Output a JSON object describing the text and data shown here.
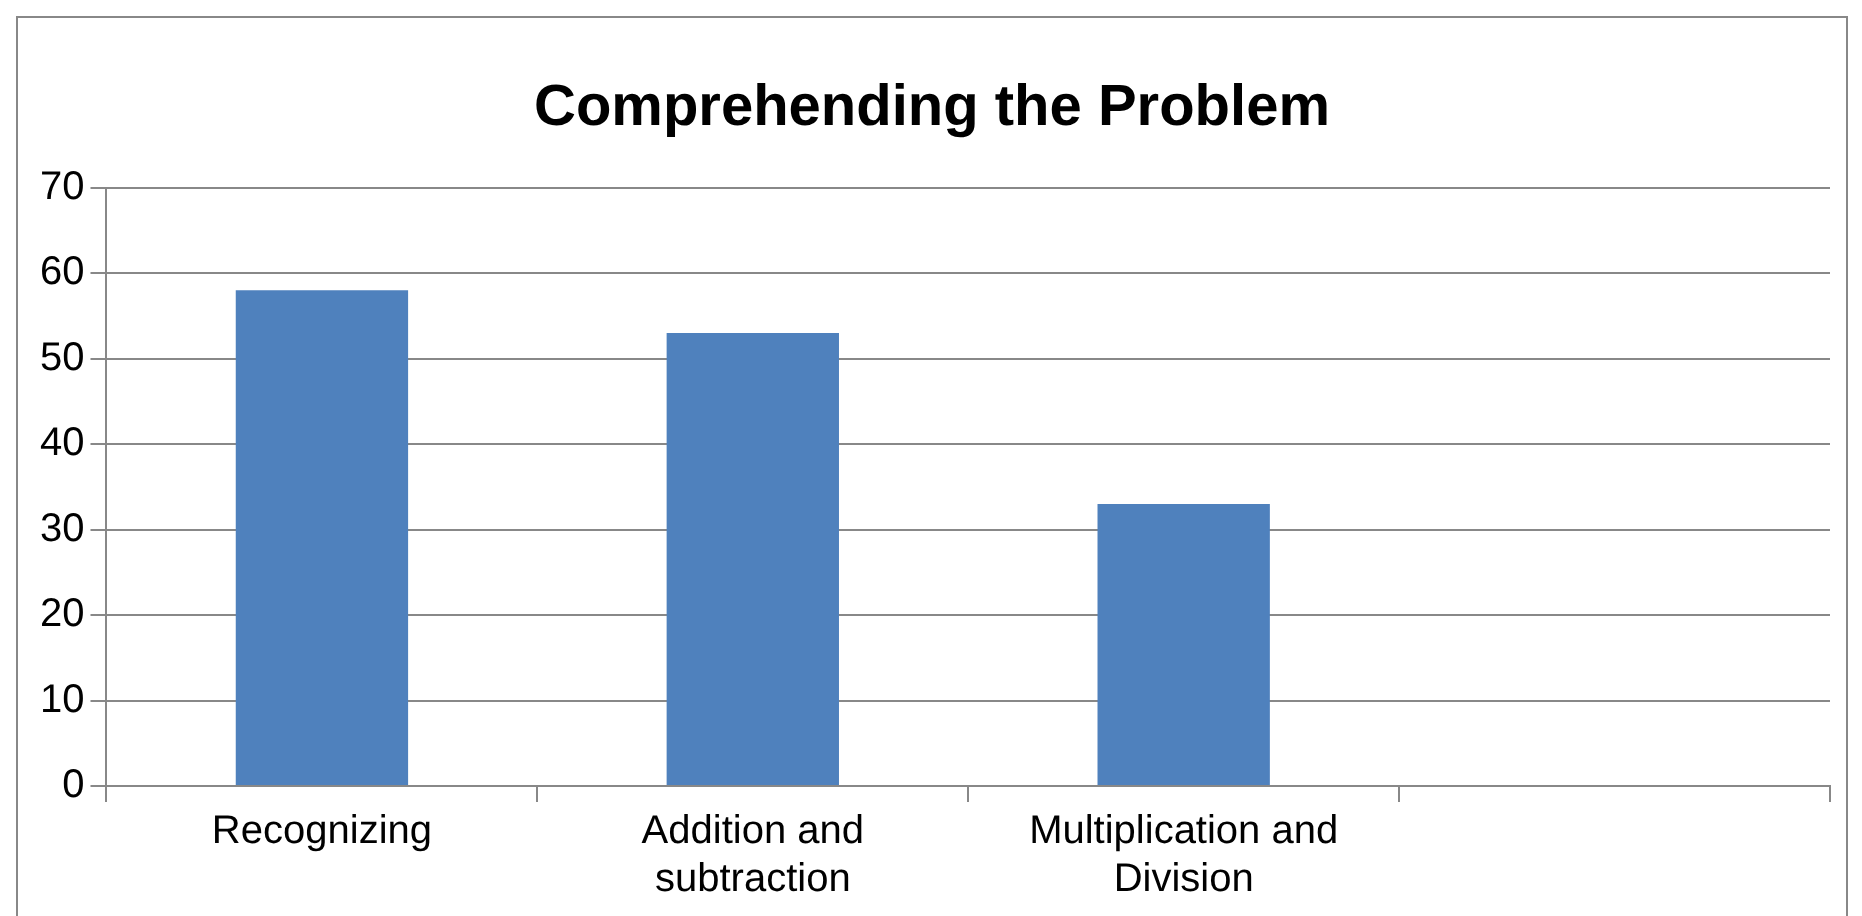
{
  "chart_data": {
    "type": "bar",
    "title": "Comprehending the Problem",
    "categories": [
      "Recognizing",
      "Addition and subtraction",
      "Multiplication and Division",
      null
    ],
    "values": [
      58,
      53,
      33,
      null
    ],
    "color": "#4f81bd",
    "ylim": [
      0,
      70
    ],
    "yticks": [
      0,
      10,
      20,
      30,
      40,
      50,
      60,
      70
    ],
    "grid": "y",
    "legend": false
  }
}
